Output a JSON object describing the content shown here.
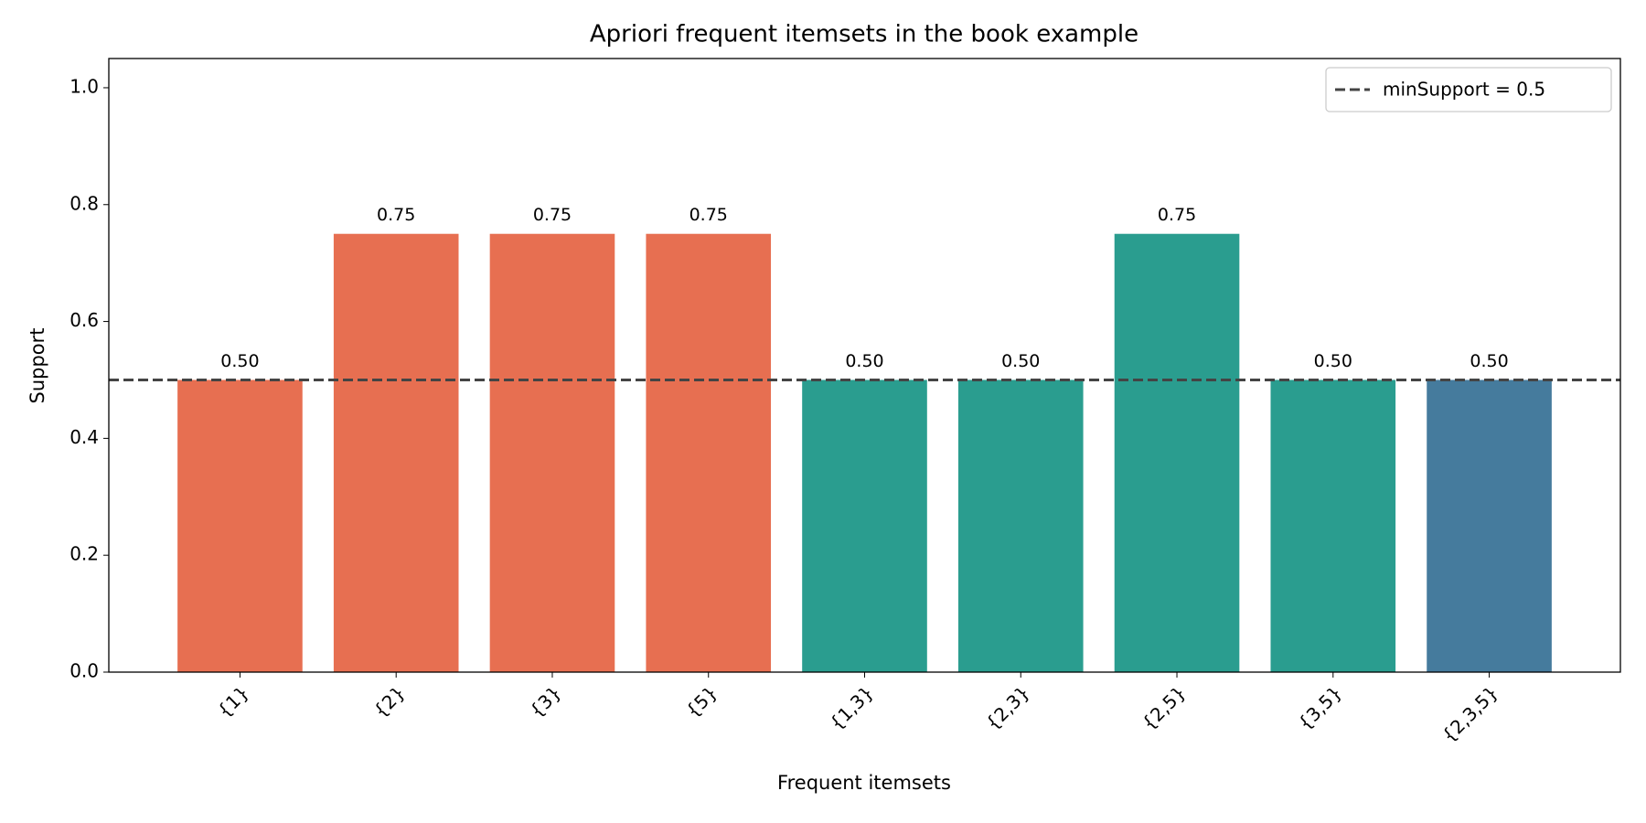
{
  "chart_data": {
    "type": "bar",
    "title": "Apriori frequent itemsets in the book example",
    "x_label": "Frequent itemsets",
    "y_label": "Support",
    "categories": [
      "{1}",
      "{2}",
      "{3}",
      "{5}",
      "{1,3}",
      "{2,3}",
      "{2,5}",
      "{3,5}",
      "{2,3,5}"
    ],
    "values": [
      0.5,
      0.75,
      0.75,
      0.75,
      0.5,
      0.5,
      0.75,
      0.5,
      0.5
    ],
    "value_labels": [
      "0.50",
      "0.75",
      "0.75",
      "0.75",
      "0.50",
      "0.50",
      "0.75",
      "0.50",
      "0.50"
    ],
    "colors": [
      "#e76f51",
      "#e76f51",
      "#e76f51",
      "#e76f51",
      "#2a9d8f",
      "#2a9d8f",
      "#2a9d8f",
      "#2a9d8f",
      "#457b9d"
    ],
    "ylim": [
      0,
      1.05
    ],
    "yticks": [
      {
        "value": 0,
        "label": "0.0"
      },
      0.2,
      0.4,
      0.6,
      0.8,
      {
        "value": 1,
        "label": "1.0"
      }
    ],
    "threshold": {
      "value": 0.5,
      "label": "minSupport = 0.5",
      "color": "#444444"
    },
    "legend": "upper right"
  }
}
